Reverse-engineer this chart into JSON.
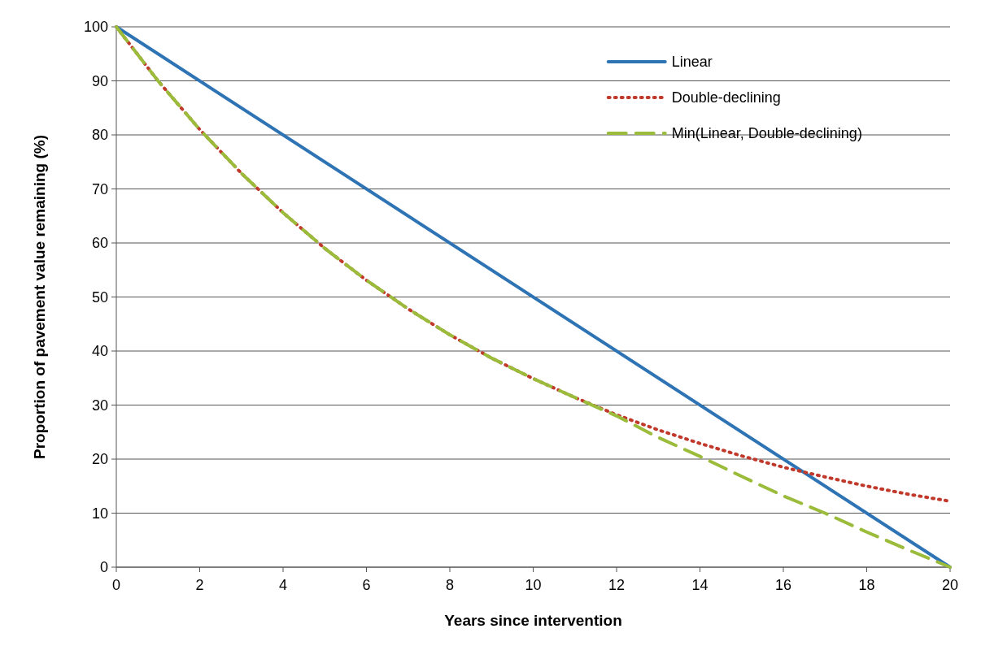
{
  "chart_data": {
    "type": "line",
    "xlabel": "Years since intervention",
    "ylabel": "Proportion of pavement value remaining (%)",
    "xlim": [
      0,
      20
    ],
    "xticks": [
      0,
      2,
      4,
      6,
      8,
      10,
      12,
      14,
      16,
      18,
      20
    ],
    "ylim": [
      0,
      100
    ],
    "yticks": [
      0,
      10,
      20,
      30,
      40,
      50,
      60,
      70,
      80,
      90,
      100
    ],
    "grid": "y",
    "legend": "top right",
    "series": [
      {
        "name": "Linear",
        "color": "#2e74b5",
        "line_style": "solid",
        "x": [
          0,
          20
        ],
        "values": [
          100,
          0
        ]
      },
      {
        "name": "Double-declining",
        "color": "#c0392b",
        "line_style": "dotted",
        "x": [
          0,
          1,
          2,
          3,
          4,
          5,
          6,
          7,
          8,
          9,
          10,
          11,
          12,
          13,
          14,
          15,
          16,
          17,
          18,
          19,
          20
        ],
        "values": [
          100,
          90,
          81,
          72.9,
          65.6,
          59,
          53.1,
          47.8,
          43,
          38.7,
          34.9,
          31.4,
          28.2,
          25.4,
          22.9,
          20.6,
          18.5,
          16.7,
          15,
          13.5,
          12.2
        ]
      },
      {
        "name": "Min(Linear, Double-declining)",
        "color": "#9bbb3b",
        "line_style": "dashed",
        "x": [
          0,
          1,
          2,
          3,
          4,
          5,
          6,
          7,
          8,
          9,
          10,
          11,
          12,
          13,
          14,
          15,
          16,
          17,
          18,
          19,
          20
        ],
        "values": [
          100,
          90,
          81,
          72.9,
          65.6,
          59,
          53.1,
          47.8,
          43,
          38.7,
          34.9,
          31.4,
          28,
          24,
          20.5,
          16.8,
          13.2,
          10,
          6.5,
          3.2,
          0
        ]
      }
    ]
  }
}
